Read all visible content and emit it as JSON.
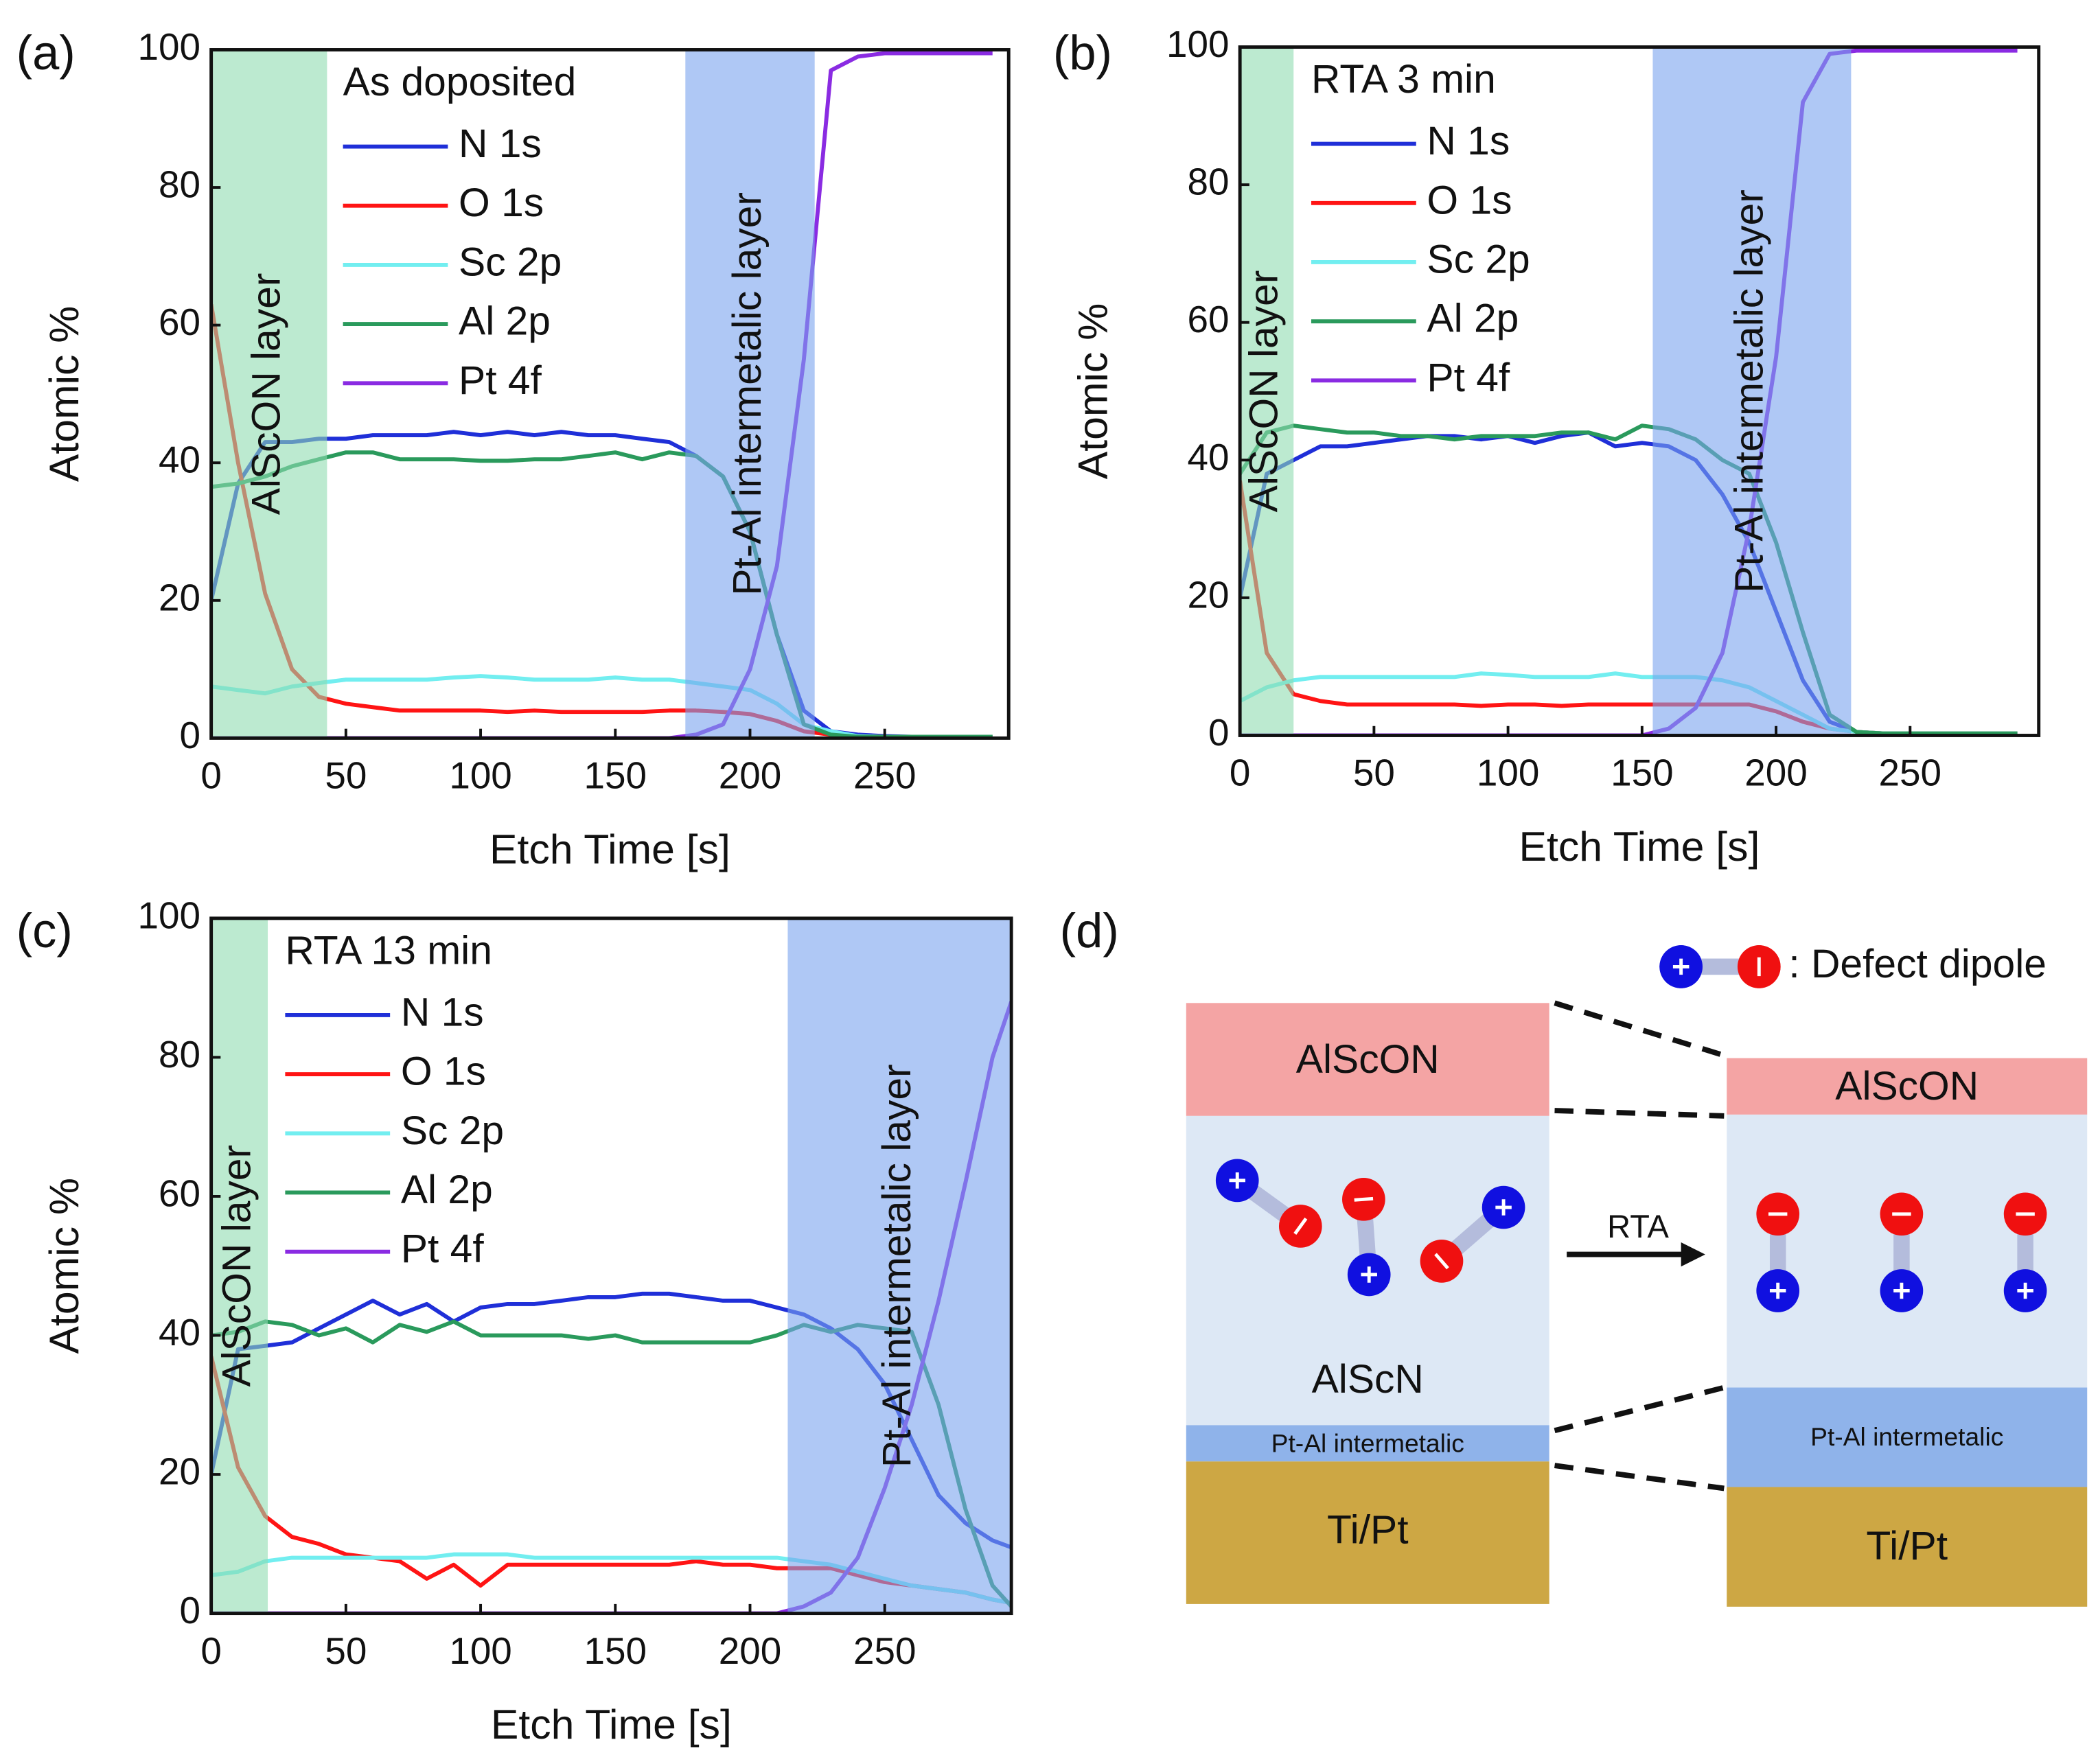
{
  "chart_data": [
    {
      "type": "line",
      "panel": "(a)",
      "annotation": "As doposited",
      "xlabel": "Etch Time [s]",
      "ylabel": "Atomic %",
      "xlim": [
        0,
        296
      ],
      "ylim": [
        0,
        100
      ],
      "xticks": [
        0,
        50,
        100,
        150,
        200,
        250
      ],
      "yticks": [
        0,
        20,
        40,
        60,
        80,
        100
      ],
      "grid": false,
      "regions": [
        {
          "label": "AlScON layer",
          "x0": 0,
          "x1": 43,
          "color": "#8fdcb0"
        },
        {
          "label": "Pt-Al intermetalic layer",
          "x0": 176,
          "x1": 224,
          "color": "#7aa3ee"
        }
      ],
      "x": [
        0,
        10,
        20,
        30,
        40,
        50,
        60,
        70,
        80,
        90,
        100,
        110,
        120,
        130,
        140,
        150,
        160,
        170,
        180,
        190,
        200,
        210,
        220,
        230,
        240,
        250,
        260,
        270,
        280,
        290
      ],
      "series": [
        {
          "name": "N 1s",
          "color": "#1f2fd8",
          "values": [
            20,
            37,
            43,
            43,
            43.5,
            43.5,
            44,
            44,
            44,
            44.5,
            44,
            44.5,
            44,
            44.5,
            44,
            44,
            43.5,
            43,
            41,
            38,
            30,
            15,
            4,
            1,
            0.5,
            0.3,
            0.2,
            0.2,
            0.2,
            0.2
          ]
        },
        {
          "name": "O 1s",
          "color": "#ff1414",
          "values": [
            63,
            40,
            21,
            10,
            6,
            5,
            4.5,
            4,
            4,
            4,
            4,
            3.8,
            4,
            3.8,
            3.8,
            3.8,
            3.8,
            4,
            4,
            3.8,
            3.5,
            2.5,
            1,
            0.5,
            0.3,
            0.2,
            0.2,
            0.2,
            0.2,
            0.2
          ]
        },
        {
          "name": "Sc 2p",
          "color": "#72eef0",
          "values": [
            7.5,
            7,
            6.5,
            7.5,
            8,
            8.5,
            8.5,
            8.5,
            8.5,
            8.8,
            9,
            8.8,
            8.5,
            8.5,
            8.5,
            8.8,
            8.5,
            8.5,
            8,
            7.5,
            7,
            5,
            2,
            1,
            0.3,
            0.2,
            0.2,
            0.2,
            0.2,
            0.2
          ]
        },
        {
          "name": "Al 2p",
          "color": "#2a9a5c",
          "values": [
            36.5,
            37,
            38,
            39.5,
            40.5,
            41.5,
            41.5,
            40.5,
            40.5,
            40.5,
            40.3,
            40.3,
            40.5,
            40.5,
            41,
            41.5,
            40.5,
            41.5,
            41,
            38,
            30,
            15,
            2,
            0.5,
            0.2,
            0.2,
            0.2,
            0.2,
            0.2,
            0.2
          ]
        },
        {
          "name": "Pt 4f",
          "color": "#8a2be2",
          "values": [
            0,
            0,
            0,
            0,
            0,
            0,
            0,
            0,
            0,
            0,
            0,
            0,
            0,
            0,
            0,
            0,
            0,
            0,
            0.5,
            2,
            10,
            25,
            55,
            97,
            99,
            99.5,
            99.5,
            99.5,
            99.5,
            99.5
          ]
        }
      ]
    },
    {
      "type": "line",
      "panel": "(b)",
      "annotation": "RTA 3 min",
      "xlabel": "Etch Time [s]",
      "ylabel": "Atomic %",
      "xlim": [
        0,
        298
      ],
      "ylim": [
        0,
        100
      ],
      "xticks": [
        0,
        50,
        100,
        150,
        200,
        250
      ],
      "yticks": [
        0,
        20,
        40,
        60,
        80,
        100
      ],
      "grid": false,
      "regions": [
        {
          "label": "AlScON layer",
          "x0": 0,
          "x1": 20,
          "color": "#8fdcb0"
        },
        {
          "label": "Pt-Al intermetalic layer",
          "x0": 154,
          "x1": 228,
          "color": "#7aa3ee"
        }
      ],
      "x": [
        0,
        10,
        20,
        30,
        40,
        50,
        60,
        70,
        80,
        90,
        100,
        110,
        120,
        130,
        140,
        150,
        160,
        170,
        180,
        190,
        200,
        210,
        220,
        230,
        240,
        250,
        260,
        270,
        280,
        290
      ],
      "series": [
        {
          "name": "N 1s",
          "color": "#1f2fd8",
          "values": [
            20,
            38,
            40,
            42,
            42,
            42.5,
            43,
            43.5,
            43.5,
            43,
            43.5,
            42.5,
            43.5,
            44,
            42,
            42.5,
            42,
            40,
            35,
            28,
            18,
            8,
            2,
            0.5,
            0.3,
            0.3,
            0.3,
            0.3,
            0.3,
            0.3
          ]
        },
        {
          "name": "O 1s",
          "color": "#ff1414",
          "values": [
            37,
            12,
            6,
            5,
            4.5,
            4.5,
            4.5,
            4.5,
            4.5,
            4.3,
            4.5,
            4.5,
            4.3,
            4.5,
            4.5,
            4.5,
            4.5,
            4.5,
            4.5,
            4.5,
            3.5,
            2,
            1,
            0.5,
            0.3,
            0.3,
            0.3,
            0.3,
            0.3,
            0.3
          ]
        },
        {
          "name": "Sc 2p",
          "color": "#72eef0",
          "values": [
            5,
            7,
            8,
            8.5,
            8.5,
            8.5,
            8.5,
            8.5,
            8.5,
            9,
            8.8,
            8.5,
            8.5,
            8.5,
            9,
            8.5,
            8.5,
            8.5,
            8,
            7,
            5,
            3,
            1,
            0.5,
            0.3,
            0.3,
            0.3,
            0.3,
            0.3,
            0.3
          ]
        },
        {
          "name": "Al 2p",
          "color": "#2a9a5c",
          "values": [
            38,
            44,
            45,
            44.5,
            44,
            44,
            43.5,
            43.5,
            43,
            43.5,
            43.5,
            43.5,
            44,
            44,
            43,
            45,
            44.5,
            43,
            40,
            38,
            28,
            15,
            3,
            0.5,
            0.3,
            0.3,
            0.3,
            0.3,
            0.3,
            0.3
          ]
        },
        {
          "name": "Pt 4f",
          "color": "#8a2be2",
          "values": [
            0,
            0,
            0,
            0,
            0,
            0,
            0,
            0,
            0,
            0,
            0,
            0,
            0,
            0,
            0,
            0,
            1,
            4,
            12,
            30,
            55,
            92,
            99,
            99.5,
            99.5,
            99.5,
            99.5,
            99.5,
            99.5,
            99.5
          ]
        }
      ]
    },
    {
      "type": "line",
      "panel": "(c)",
      "annotation": "RTA 13 min",
      "xlabel": "Etch Time [s]",
      "ylabel": "Atomic %",
      "xlim": [
        0,
        297
      ],
      "ylim": [
        0,
        100
      ],
      "xticks": [
        0,
        50,
        100,
        150,
        200,
        250
      ],
      "yticks": [
        0,
        20,
        40,
        60,
        80,
        100
      ],
      "grid": false,
      "regions": [
        {
          "label": "AlScON layer",
          "x0": 0,
          "x1": 21,
          "color": "#8fdcb0"
        },
        {
          "label": "Pt-Al intermetalic layer",
          "x0": 214,
          "x1": 297,
          "color": "#7aa3ee"
        }
      ],
      "x": [
        0,
        10,
        20,
        30,
        40,
        50,
        60,
        70,
        80,
        90,
        100,
        110,
        120,
        130,
        140,
        150,
        160,
        170,
        180,
        190,
        200,
        210,
        220,
        230,
        240,
        250,
        260,
        270,
        280,
        290,
        297
      ],
      "series": [
        {
          "name": "N 1s",
          "color": "#1f2fd8",
          "values": [
            20,
            38,
            38.5,
            39,
            41,
            43,
            45,
            43,
            44.5,
            42,
            44,
            44.5,
            44.5,
            45,
            45.5,
            45.5,
            46,
            46,
            45.5,
            45,
            45,
            44,
            43,
            41,
            38,
            33,
            25,
            17,
            13,
            10.5,
            9.5
          ]
        },
        {
          "name": "O 1s",
          "color": "#ff1414",
          "values": [
            37,
            21,
            14,
            11,
            10,
            8.5,
            8,
            7.5,
            5,
            7,
            4,
            7,
            7,
            7,
            7,
            7,
            7,
            7,
            7.5,
            7,
            7,
            6.5,
            6.5,
            6.5,
            5.5,
            4.5,
            4,
            3.5,
            3,
            2,
            1.5
          ]
        },
        {
          "name": "Sc 2p",
          "color": "#72eef0",
          "values": [
            5.5,
            6,
            7.5,
            8,
            8,
            8,
            8,
            8,
            8,
            8.5,
            8.5,
            8.5,
            8,
            8,
            8,
            8,
            8,
            8,
            8,
            8,
            8,
            8,
            7.5,
            7,
            6,
            5,
            4,
            3.5,
            3,
            2,
            1.5
          ]
        },
        {
          "name": "Al 2p",
          "color": "#2a9a5c",
          "values": [
            40,
            40.5,
            42,
            41.5,
            40,
            41,
            39,
            41.5,
            40.5,
            42,
            40,
            40,
            40,
            40,
            39.5,
            40,
            39,
            39,
            39,
            39,
            39,
            40,
            41.5,
            40.5,
            41.5,
            41,
            40.5,
            30,
            15,
            4,
            1
          ]
        },
        {
          "name": "Pt 4f",
          "color": "#8a2be2",
          "values": [
            0,
            0,
            0,
            0,
            0,
            0,
            0,
            0,
            0,
            0,
            0,
            0,
            0,
            0,
            0,
            0,
            0,
            0,
            0,
            0,
            0,
            0,
            1,
            3,
            8,
            18,
            30,
            45,
            62,
            80,
            88
          ]
        }
      ]
    }
  ],
  "diagram": {
    "panel": "(d)",
    "legend": ": Defect dipole",
    "arrow": "RTA",
    "before": [
      "AlScON",
      "AlScN",
      "Pt-Al intermetalic",
      "Ti/Pt"
    ],
    "after": [
      "AlScON",
      "Pt-Al intermetalic",
      "Ti/Pt"
    ]
  }
}
